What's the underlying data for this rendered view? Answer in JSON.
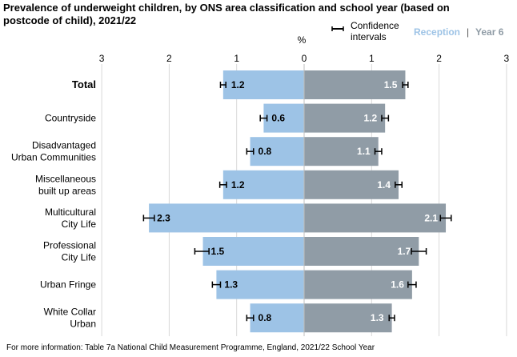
{
  "chart_data": {
    "type": "bar",
    "orientation": "horizontal-diverging",
    "title": "Prevalence of underweight children, by ONS area classification and school year (based on postcode of child), 2021/22",
    "unit_label": "%",
    "axis_ticks": [
      "3",
      "2",
      "1",
      "0",
      "1",
      "2",
      "3"
    ],
    "xlim": [
      -3,
      3
    ],
    "grid": true,
    "legend": {
      "position": "top-right",
      "ci_label_line1": "Confidence",
      "ci_label_line2": "intervals",
      "separator": "|"
    },
    "categories": [
      "Total",
      "Countryside",
      "Disadvantaged Urban Communities",
      "Miscellaneous built up areas",
      "Multicultural City Life",
      "Professional City Life",
      "Urban Fringe",
      "White Collar Urban"
    ],
    "category_lines": [
      [
        "Total"
      ],
      [
        "Countryside"
      ],
      [
        "Disadvantaged",
        "Urban Communities"
      ],
      [
        "Miscellaneous",
        "built up areas"
      ],
      [
        "Multicultural",
        "City Life"
      ],
      [
        "Professional",
        "City Life"
      ],
      [
        "Urban Fringe"
      ],
      [
        "White Collar",
        "Urban"
      ]
    ],
    "series": [
      {
        "name": "Reception",
        "color": "#9dc3e6",
        "values": [
          1.2,
          0.6,
          0.8,
          1.2,
          2.3,
          1.5,
          1.3,
          0.8
        ],
        "labels": [
          "1.2",
          "0.6",
          "0.8",
          "1.2",
          "2.3",
          "1.5",
          "1.3",
          "0.8"
        ],
        "ci_low": [
          1.16,
          0.55,
          0.75,
          1.15,
          2.22,
          1.41,
          1.24,
          0.75
        ],
        "ci_high": [
          1.24,
          0.65,
          0.85,
          1.25,
          2.38,
          1.62,
          1.36,
          0.85
        ]
      },
      {
        "name": "Year 6",
        "color": "#909ca6",
        "values": [
          1.5,
          1.2,
          1.1,
          1.4,
          2.1,
          1.7,
          1.6,
          1.3
        ],
        "labels": [
          "1.5",
          "1.2",
          "1.1",
          "1.4",
          "2.1",
          "1.7",
          "1.6",
          "1.3"
        ],
        "ci_low": [
          1.46,
          1.15,
          1.05,
          1.35,
          2.02,
          1.59,
          1.54,
          1.26
        ],
        "ci_high": [
          1.54,
          1.25,
          1.15,
          1.45,
          2.18,
          1.81,
          1.66,
          1.34
        ]
      }
    ]
  },
  "footnote": "For more information: Table 7a National Child Measurement Programme, England, 2021/22 School Year"
}
